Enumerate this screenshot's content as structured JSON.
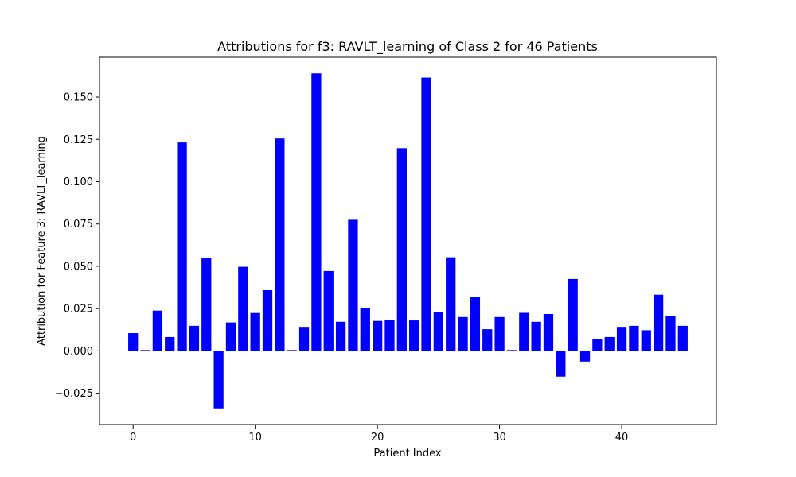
{
  "chart_data": {
    "type": "bar",
    "title": "Attributions for f3: RAVLT_learning of Class 2 for 46 Patients",
    "xlabel": "Patient Index",
    "ylabel": "Attribution for Feature 3: RAVLT_learning",
    "bar_color": "#0000ff",
    "x": [
      0,
      1,
      2,
      3,
      4,
      5,
      6,
      7,
      8,
      9,
      10,
      11,
      12,
      13,
      14,
      15,
      16,
      17,
      18,
      19,
      20,
      21,
      22,
      23,
      24,
      25,
      26,
      27,
      28,
      29,
      30,
      31,
      32,
      33,
      34,
      35,
      36,
      37,
      38,
      39,
      40,
      41,
      42,
      43,
      44,
      45
    ],
    "values": [
      0.0105,
      0.0005,
      0.0238,
      0.0082,
      0.1232,
      0.0148,
      0.0548,
      -0.034,
      0.0168,
      0.0497,
      0.0224,
      0.0359,
      0.1255,
      0.0005,
      0.0142,
      0.164,
      0.0472,
      0.0172,
      0.0775,
      0.0252,
      0.0177,
      0.0185,
      0.1198,
      0.018,
      0.1615,
      0.0228,
      0.0553,
      0.02,
      0.0318,
      0.0128,
      0.02,
      0.0005,
      0.0225,
      0.0172,
      0.0218,
      -0.0152,
      0.0425,
      -0.0063,
      0.0072,
      0.0082,
      0.0142,
      0.0148,
      0.0122,
      0.0332,
      0.0208,
      0.0148
    ],
    "xlim": [
      -2.75,
      47.75
    ],
    "ylim": [
      -0.0435,
      0.1735
    ],
    "x_ticks": [
      0,
      10,
      20,
      30,
      40
    ],
    "x_tick_labels": [
      "0",
      "10",
      "20",
      "30",
      "40"
    ],
    "y_ticks": [
      -0.025,
      0,
      0.025,
      0.05,
      0.075,
      0.1,
      0.125,
      0.15
    ],
    "y_tick_labels": [
      "−0.025",
      "0.000",
      "0.025",
      "0.050",
      "0.075",
      "0.100",
      "0.125",
      "0.150"
    ],
    "grid": false,
    "legend": "none"
  }
}
